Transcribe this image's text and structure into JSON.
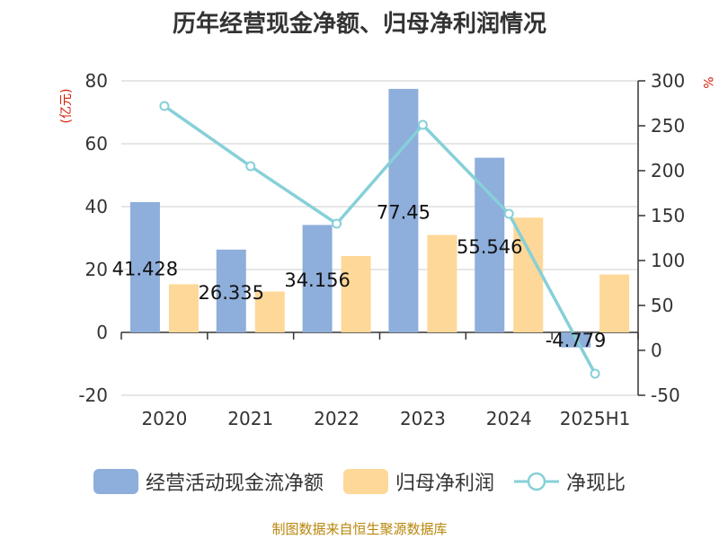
{
  "title": "历年经营现金净额、归母净利润情况",
  "source": "制图数据来自恒生聚源数据库",
  "colors": {
    "cash_flow": "#8eaedb",
    "net_profit": "#fed898",
    "ratio": "#86d0d8",
    "unit": "#d81e06",
    "axis": "#333333",
    "grid": "#cccccc"
  },
  "legend": {
    "cash_flow": "经营活动现金流净额",
    "net_profit": "归母净利润",
    "ratio": "净现比"
  },
  "chart_data": {
    "type": "bar",
    "title": "历年经营现金净额、归母净利润情况",
    "categories": [
      "2020",
      "2021",
      "2022",
      "2023",
      "2024",
      "2025H1"
    ],
    "left_axis": {
      "unit": "(亿元)",
      "ylim": [
        -20,
        80
      ],
      "ticks": [
        80,
        60,
        40,
        20,
        0,
        -20
      ]
    },
    "right_axis": {
      "unit": "%",
      "ylim": [
        -50,
        300
      ],
      "ticks": [
        300,
        250,
        200,
        150,
        100,
        50,
        0,
        -50
      ]
    },
    "series": [
      {
        "name": "经营活动现金流净额",
        "type": "bar",
        "axis": "left",
        "values": [
          41.428,
          26.335,
          34.156,
          77.45,
          55.546,
          -4.779
        ],
        "labels": [
          "41.428",
          "26.335",
          "34.156",
          "77.45",
          "55.546",
          "-4.779"
        ]
      },
      {
        "name": "归母净利润",
        "type": "bar",
        "axis": "left",
        "values": [
          15.3,
          13.0,
          24.3,
          31.0,
          36.5,
          18.4
        ]
      },
      {
        "name": "净现比",
        "type": "line",
        "axis": "right",
        "values": [
          272,
          205,
          141,
          251,
          152,
          -26
        ]
      }
    ],
    "grid": true,
    "legend_position": "bottom"
  }
}
